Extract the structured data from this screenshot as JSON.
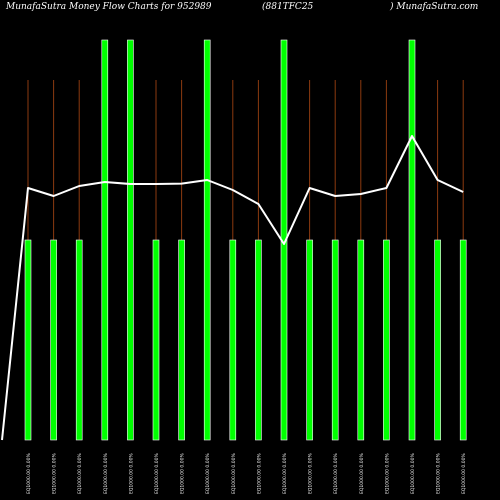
{
  "header": {
    "left": "MunafaSutra  Money Flow  Charts for 952989",
    "middle": "(881TFC25",
    "right": ") MunafaSutra.com"
  },
  "colors": {
    "background": "#000000",
    "bar": "#00ff00",
    "bar_outline": "#ffffff",
    "gridline": "#8b3a0f",
    "line": "#ffffff",
    "text": "#ffffff"
  },
  "chart_data": {
    "type": "bar",
    "grid": true,
    "ylim": [
      0,
      1
    ],
    "x_labels": [
      "EQ1000.00 0.00%",
      "EQ1000.00 0.00%",
      "EQ1000.00 0.00%",
      "EQ1000.00 0.00%",
      "EQ1000.00 0.00%",
      "EQ1000.00 0.00%",
      "EQ1000.00 0.00%",
      "EQ1000.00 0.00%",
      "EQ1000.00 0.00%",
      "EQ1000.00 0.00%",
      "EQ1000.00 0.00%",
      "EQ1000.00 0.00%",
      "EQ1000.00 0.00%",
      "EQ1000.00 0.00%",
      "EQ1000.00 0.00%",
      "EQ1000.00 0.00%",
      "EQ1000.00 0.00%",
      "EQ1000.00 0.00%"
    ],
    "bars": [
      0.5,
      0.5,
      0.5,
      1.0,
      1.0,
      0.5,
      0.5,
      1.0,
      0.5,
      0.5,
      1.0,
      0.5,
      0.5,
      0.5,
      0.5,
      1.0,
      0.5,
      0.5
    ],
    "line": [
      0.0,
      0.63,
      0.61,
      0.635,
      0.645,
      0.64,
      0.64,
      0.641,
      0.65,
      0.625,
      0.59,
      0.49,
      0.63,
      0.61,
      0.615,
      0.63,
      0.76,
      0.65,
      0.62
    ]
  }
}
